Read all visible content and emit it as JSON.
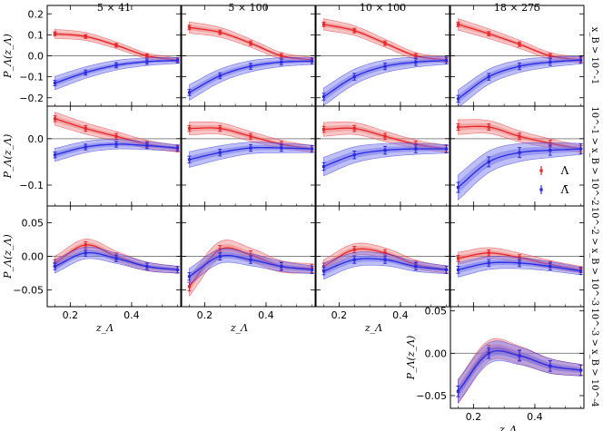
{
  "figure": {
    "column_titles": [
      "5 × 41",
      "5 × 100",
      "10 × 100",
      "18 × 275"
    ],
    "row_labels": [
      "x_B > 10^-1",
      "10^-1 > x_B > 10^-2",
      "10^-2 > x_B > 10^-3",
      "10^-3 > x_B > 10^-4"
    ],
    "ylabel": "P_Λ(z_Λ)",
    "xlabel": "z_Λ",
    "legend": {
      "lambda": "Λ",
      "antilambda": "Λ̄"
    },
    "colors": {
      "lambda": "#e8262a",
      "antilambda": "#2a2ae0",
      "lambda_band": "#f08080",
      "antilambda_band": "#7070f0"
    }
  },
  "chart_data": {
    "type": "line",
    "x": [
      0.15,
      0.25,
      0.35,
      0.45,
      0.55
    ],
    "xlim": [
      0.125,
      0.56
    ],
    "xticks": [
      0.2,
      0.4
    ],
    "rows": [
      {
        "label": "x_B > 10^-1",
        "ylim": [
          -0.24,
          0.24
        ],
        "yticks": [
          -0.2,
          -0.1,
          0.0,
          0.1,
          0.2
        ],
        "ytick_labels": [
          "−0.2",
          "−0.1",
          "0.0",
          "0.1",
          "0.2"
        ]
      },
      {
        "label": "10^-1 > x_B > 10^-2",
        "ylim": [
          -0.145,
          0.07
        ],
        "yticks": [
          -0.1,
          0.0
        ],
        "ytick_labels": [
          "−0.1",
          "0.0"
        ]
      },
      {
        "label": "10^-2 > x_B > 10^-3",
        "ylim": [
          -0.075,
          0.075
        ],
        "yticks": [
          -0.05,
          0.0,
          0.05
        ],
        "ytick_labels": [
          "−0.05",
          "0.00",
          "0.05"
        ]
      },
      {
        "label": "10^-3 > x_B > 10^-4",
        "ylim": [
          -0.065,
          0.055
        ],
        "yticks": [
          -0.05,
          0.0,
          0.05
        ],
        "ytick_labels": [
          "−0.05",
          "0.00",
          "0.05"
        ]
      }
    ],
    "panels": [
      {
        "row": 0,
        "col": 0,
        "series": [
          {
            "name": "Λ",
            "values": [
              0.105,
              0.092,
              0.05,
              0.0,
              -0.02
            ],
            "band": 0.02
          },
          {
            "name": "Λ̄",
            "values": [
              -0.13,
              -0.08,
              -0.045,
              -0.028,
              -0.022
            ],
            "band": 0.03
          }
        ]
      },
      {
        "row": 0,
        "col": 1,
        "series": [
          {
            "name": "Λ",
            "values": [
              0.135,
              0.112,
              0.06,
              0.0,
              -0.02
            ],
            "band": 0.025
          },
          {
            "name": "Λ̄",
            "values": [
              -0.175,
              -0.095,
              -0.05,
              -0.03,
              -0.025
            ],
            "band": 0.035
          }
        ]
      },
      {
        "row": 0,
        "col": 2,
        "series": [
          {
            "name": "Λ",
            "values": [
              0.15,
              0.12,
              0.06,
              0.0,
              -0.02
            ],
            "band": 0.025
          },
          {
            "name": "Λ̄",
            "values": [
              -0.195,
              -0.1,
              -0.05,
              -0.03,
              -0.022
            ],
            "band": 0.04
          }
        ]
      },
      {
        "row": 0,
        "col": 3,
        "series": [
          {
            "name": "Λ",
            "values": [
              0.15,
              0.105,
              0.055,
              0.0,
              -0.02
            ],
            "band": 0.025
          },
          {
            "name": "Λ̄",
            "values": [
              -0.205,
              -0.1,
              -0.05,
              -0.03,
              -0.02
            ],
            "band": 0.04
          }
        ]
      },
      {
        "row": 1,
        "col": 0,
        "series": [
          {
            "name": "Λ",
            "values": [
              0.043,
              0.022,
              0.005,
              -0.012,
              -0.022
            ],
            "band": 0.012
          },
          {
            "name": "Λ̄",
            "values": [
              -0.035,
              -0.018,
              -0.012,
              -0.015,
              -0.02
            ],
            "band": 0.012
          }
        ]
      },
      {
        "row": 1,
        "col": 1,
        "series": [
          {
            "name": "Λ",
            "values": [
              0.022,
              0.022,
              0.005,
              -0.012,
              -0.022
            ],
            "band": 0.012
          },
          {
            "name": "Λ̄",
            "values": [
              -0.045,
              -0.03,
              -0.02,
              -0.02,
              -0.022
            ],
            "band": 0.015
          }
        ]
      },
      {
        "row": 1,
        "col": 2,
        "series": [
          {
            "name": "Λ",
            "values": [
              0.02,
              0.022,
              0.005,
              -0.012,
              -0.022
            ],
            "band": 0.013
          },
          {
            "name": "Λ̄",
            "values": [
              -0.06,
              -0.035,
              -0.025,
              -0.022,
              -0.022
            ],
            "band": 0.018
          }
        ]
      },
      {
        "row": 1,
        "col": 3,
        "series": [
          {
            "name": "Λ",
            "values": [
              0.025,
              0.025,
              0.005,
              -0.01,
              -0.022
            ],
            "band": 0.014
          },
          {
            "name": "Λ̄",
            "values": [
              -0.105,
              -0.05,
              -0.03,
              -0.025,
              -0.022
            ],
            "band": 0.025
          }
        ]
      },
      {
        "row": 2,
        "col": 0,
        "series": [
          {
            "name": "Λ",
            "values": [
              -0.01,
              0.017,
              0.0,
              -0.015,
              -0.02
            ],
            "band": 0.008
          },
          {
            "name": "Λ̄",
            "values": [
              -0.015,
              0.005,
              -0.003,
              -0.015,
              -0.02
            ],
            "band": 0.008
          }
        ]
      },
      {
        "row": 2,
        "col": 1,
        "series": [
          {
            "name": "Λ",
            "values": [
              -0.045,
              0.01,
              0.002,
              -0.015,
              -0.018
            ],
            "band": 0.012
          },
          {
            "name": "Λ̄",
            "values": [
              -0.03,
              0.0,
              -0.005,
              -0.015,
              -0.02
            ],
            "band": 0.01
          }
        ]
      },
      {
        "row": 2,
        "col": 2,
        "series": [
          {
            "name": "Λ",
            "values": [
              -0.015,
              0.01,
              0.005,
              -0.012,
              -0.02
            ],
            "band": 0.008
          },
          {
            "name": "Λ̄",
            "values": [
              -0.022,
              -0.005,
              -0.005,
              -0.015,
              -0.02
            ],
            "band": 0.01
          }
        ]
      },
      {
        "row": 2,
        "col": 3,
        "series": [
          {
            "name": "Λ",
            "values": [
              -0.003,
              0.005,
              -0.002,
              -0.012,
              -0.02
            ],
            "band": 0.007
          },
          {
            "name": "Λ̄",
            "values": [
              -0.02,
              -0.01,
              -0.01,
              -0.015,
              -0.022
            ],
            "band": 0.009
          }
        ]
      },
      {
        "row": 3,
        "col": 3,
        "series": [
          {
            "name": "Λ",
            "values": [
              -0.045,
              0.003,
              -0.002,
              -0.015,
              -0.02
            ],
            "band": 0.012
          },
          {
            "name": "Λ̄",
            "values": [
              -0.045,
              0.0,
              -0.003,
              -0.015,
              -0.02
            ],
            "band": 0.012
          }
        ]
      }
    ],
    "grid": false,
    "legend_position": "right, middle row"
  }
}
